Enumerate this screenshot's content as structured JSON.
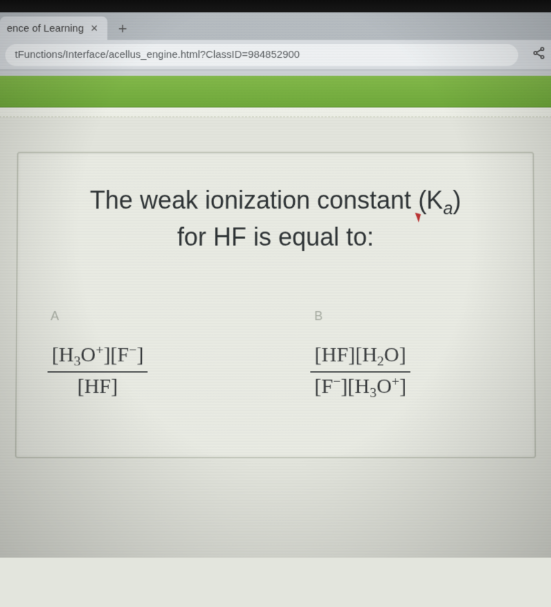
{
  "browser": {
    "tab_title": "ence of Learning",
    "url": "tFunctions/Interface/acellus_engine.html?ClassID=984852900"
  },
  "colors": {
    "green_bar": "#79b142",
    "page_bg": "#e3e5dd",
    "card_bg": "#e9ebe3",
    "card_border": "#c3c7bb",
    "text": "#2f3436",
    "label": "#a8ada3",
    "tabstrip": "#b6bcc1",
    "addr": "#d9dde1",
    "url_text": "#5a5e61"
  },
  "question": {
    "line1_pre": "The weak ionization constant ",
    "ka_open": "(K",
    "ka_sub": "a",
    "ka_close": ")",
    "line2": "for HF is equal to:",
    "fontsize": 36
  },
  "answers": {
    "a": {
      "letter": "A",
      "num_html": "[H<sub>3</sub>O<sup>+</sup>][F<sup>−</sup>]",
      "den_html": "[HF]"
    },
    "b": {
      "letter": "B",
      "num_html": "[HF][H<sub>2</sub>O]",
      "den_html": "[F<sup>−</sup>][H<sub>3</sub>O<sup>+</sup>]"
    }
  }
}
